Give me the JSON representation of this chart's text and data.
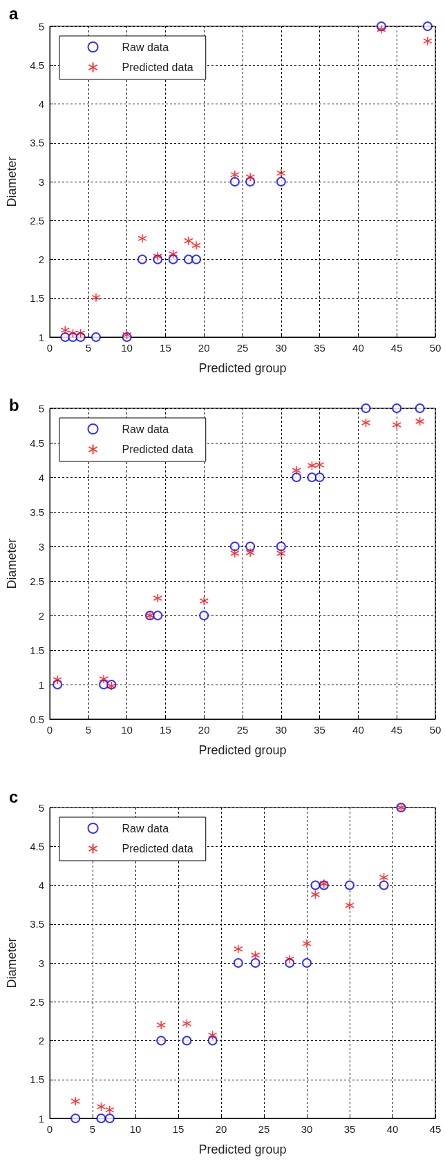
{
  "chart_data": [
    {
      "type": "scatter",
      "title": "a",
      "xlabel": "Predicted group",
      "ylabel": "Diameter",
      "xlim": [
        0,
        50
      ],
      "xticks": [
        0,
        5,
        10,
        15,
        20,
        25,
        30,
        35,
        40,
        45,
        50
      ],
      "ylim": [
        1,
        5
      ],
      "yticks": [
        1,
        1.5,
        2,
        2.5,
        3,
        3.5,
        4,
        4.5,
        5
      ],
      "grid": true,
      "legend": "top left",
      "series": [
        {
          "name": "Raw data",
          "color": "#0000ff",
          "marker": "circle",
          "x": [
            2,
            3,
            4,
            6,
            10,
            12,
            14,
            16,
            18,
            19,
            24,
            26,
            30,
            43,
            49
          ],
          "values": [
            1,
            1,
            1,
            1,
            1,
            2,
            2,
            2,
            2,
            2,
            3,
            3,
            3,
            5,
            5
          ]
        },
        {
          "name": "Predicted data",
          "color": "#ff0000",
          "marker": "cross",
          "x": [
            2,
            3,
            4,
            6,
            10,
            12,
            14,
            16,
            18,
            19,
            24,
            26,
            30,
            43,
            49
          ],
          "values": [
            1.09,
            1.05,
            1.05,
            1.51,
            1.03,
            2.27,
            2.04,
            2.07,
            2.24,
            2.18,
            3.09,
            3.06,
            3.11,
            4.96,
            4.81
          ]
        }
      ]
    },
    {
      "type": "scatter",
      "title": "b",
      "xlabel": "Predicted group",
      "ylabel": "Diameter",
      "xlim": [
        0,
        50
      ],
      "xticks": [
        0,
        5,
        10,
        15,
        20,
        25,
        30,
        35,
        40,
        45,
        50
      ],
      "ylim": [
        0.5,
        5
      ],
      "yticks": [
        0.5,
        1,
        1.5,
        2,
        2.5,
        3,
        3.5,
        4,
        4.5,
        5
      ],
      "grid": true,
      "legend": "top left",
      "series": [
        {
          "name": "Raw data",
          "color": "#0000ff",
          "marker": "circle",
          "x": [
            1,
            7,
            8,
            13,
            14,
            20,
            24,
            26,
            30,
            32,
            34,
            35,
            41,
            45,
            48
          ],
          "values": [
            1,
            1,
            1,
            2,
            2,
            2,
            3,
            3,
            3,
            4,
            4,
            4,
            5,
            5,
            5
          ]
        },
        {
          "name": "Predicted data",
          "color": "#ff0000",
          "marker": "cross",
          "x": [
            1,
            7,
            8,
            13,
            14,
            20,
            24,
            26,
            30,
            32,
            34,
            35,
            41,
            45,
            48
          ],
          "values": [
            1.07,
            1.08,
            0.98,
            2.0,
            2.25,
            2.21,
            2.9,
            2.91,
            2.9,
            4.1,
            4.17,
            4.18,
            4.79,
            4.76,
            4.81
          ]
        }
      ]
    },
    {
      "type": "scatter",
      "title": "c",
      "xlabel": "Predicted group",
      "ylabel": "Diameter",
      "xlim": [
        0,
        45
      ],
      "xticks": [
        0,
        5,
        10,
        15,
        20,
        25,
        30,
        35,
        40,
        45
      ],
      "ylim": [
        1,
        5
      ],
      "yticks": [
        1,
        1.5,
        2,
        2.5,
        3,
        3.5,
        4,
        4.5,
        5
      ],
      "grid": true,
      "legend": "top left",
      "series": [
        {
          "name": "Raw data",
          "color": "#0000ff",
          "marker": "circle",
          "x": [
            3,
            6,
            7,
            13,
            16,
            19,
            22,
            24,
            28,
            30,
            31,
            32,
            35,
            39,
            41
          ],
          "values": [
            1,
            1,
            1,
            2,
            2,
            2,
            3,
            3,
            3,
            3,
            4,
            4,
            4,
            4,
            5
          ]
        },
        {
          "name": "Predicted data",
          "color": "#ff0000",
          "marker": "cross",
          "x": [
            3,
            6,
            7,
            13,
            16,
            19,
            22,
            24,
            28,
            30,
            31,
            32,
            35,
            39,
            41
          ],
          "values": [
            1.22,
            1.15,
            1.11,
            2.2,
            2.22,
            2.07,
            3.18,
            3.1,
            3.05,
            3.25,
            3.88,
            4.02,
            3.74,
            4.1,
            5.0
          ]
        }
      ]
    }
  ]
}
